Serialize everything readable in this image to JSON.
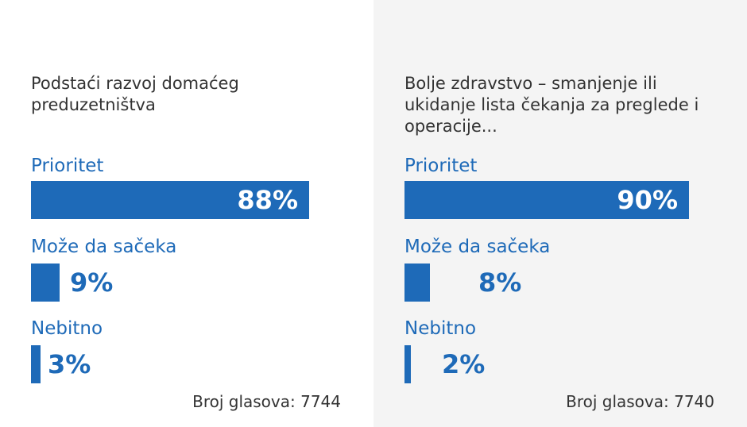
{
  "colors": {
    "bar": "#1e6ab8",
    "label": "#1e6ab8",
    "text": "#333333",
    "right_panel_bg": "#f4f4f4"
  },
  "chart_data": [
    {
      "type": "bar",
      "orientation": "horizontal",
      "title": "Podstaći razvoj domaćeg preduzetništva",
      "categories": [
        "Prioritet",
        "Može da sačeka",
        "Nebitno"
      ],
      "values": [
        88,
        9,
        3
      ],
      "value_labels": [
        "88%",
        "9%",
        "3%"
      ],
      "unit": "%",
      "xlim": [
        0,
        100
      ],
      "grid": false,
      "footer": "Broj glasova: 7744"
    },
    {
      "type": "bar",
      "orientation": "horizontal",
      "title": "Bolje zdravstvo – smanjenje ili ukidanje lista čekanja za preglede i operacije...",
      "categories": [
        "Prioritet",
        "Može da sačeka",
        "Nebitno"
      ],
      "values": [
        90,
        8,
        2
      ],
      "value_labels": [
        "90%",
        "8%",
        "2%"
      ],
      "unit": "%",
      "xlim": [
        0,
        100
      ],
      "grid": false,
      "footer": "Broj glasova: 7740"
    }
  ]
}
